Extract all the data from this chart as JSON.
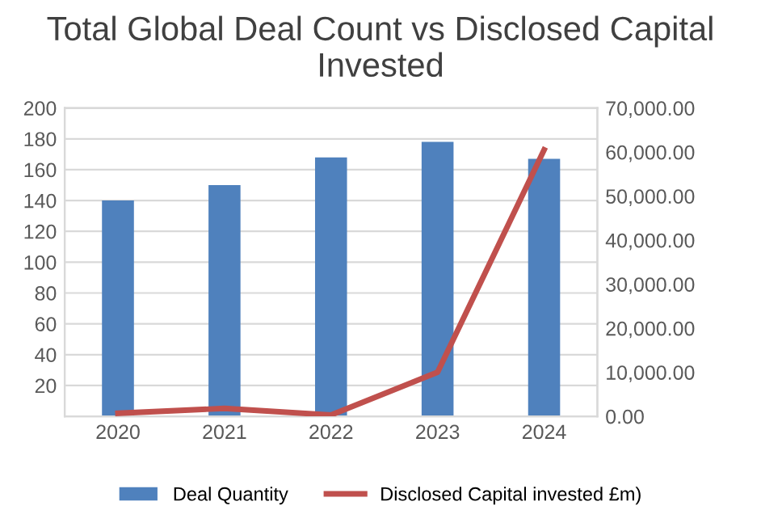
{
  "chart_data": {
    "type": "bar",
    "title": "Total Global Deal Count vs Disclosed Capital Invested",
    "categories": [
      "2020",
      "2021",
      "2022",
      "2023",
      "2024"
    ],
    "series": [
      {
        "name": "Deal Quantity",
        "color": "#4f81bd",
        "values": [
          140,
          150,
          168,
          178,
          167
        ]
      },
      {
        "name": "Disclosed Capital invested £m)",
        "type": "line",
        "axis": "y2",
        "color": "#c0504d",
        "marker": "none",
        "values": [
          700,
          1800,
          300,
          10000,
          60500
        ]
      }
    ],
    "ylim": [
      0,
      200
    ],
    "yticks": [
      {
        "value": 0,
        "label": null
      },
      20,
      40,
      60,
      80,
      100,
      120,
      140,
      160,
      180,
      200
    ],
    "y2lim": [
      0,
      70000
    ],
    "y2ticks": [
      {
        "value": 0,
        "label": "0.00"
      },
      {
        "value": 10000,
        "label": "10,000.00"
      },
      {
        "value": 20000,
        "label": "20,000.00"
      },
      {
        "value": 30000,
        "label": "30,000.00"
      },
      {
        "value": 40000,
        "label": "40,000.00"
      },
      {
        "value": 50000,
        "label": "50,000.00"
      },
      {
        "value": 60000,
        "label": "60,000.00"
      },
      {
        "value": 70000,
        "label": "70,000.00"
      }
    ],
    "grid": "y",
    "legend": "bottom"
  }
}
